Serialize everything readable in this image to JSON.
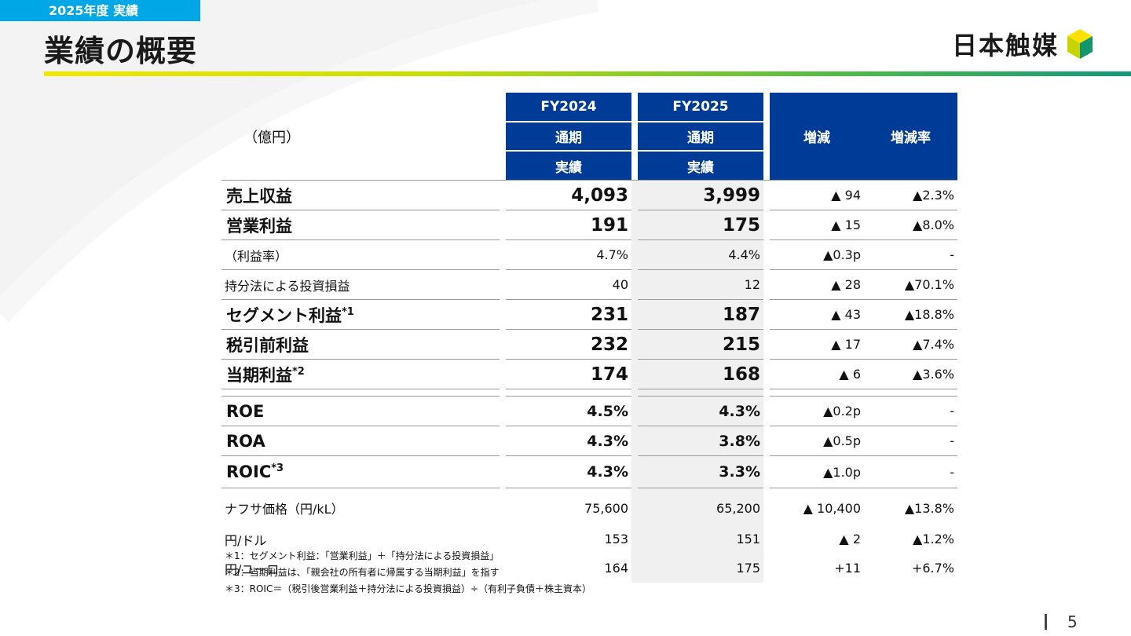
{
  "header": {
    "tag": "2025年度 実績",
    "title": "業績の概要",
    "logo_text": "日本触媒",
    "logo_mark_icon": "catalyst-cube-logo-icon"
  },
  "table": {
    "unit": "（億円）",
    "columns": {
      "fy2024": {
        "year": "FY2024",
        "period": "通期",
        "type": "実績"
      },
      "fy2025": {
        "year": "FY2025",
        "period": "通期",
        "type": "実績"
      },
      "change": "増減",
      "change_rate": "増減率"
    },
    "rows": [
      {
        "label": "売上収益",
        "sup": "",
        "fy2024": "4,093",
        "fy2025": "3,999",
        "change": "▲ 94",
        "rate": "▲2.3%"
      },
      {
        "label": "営業利益",
        "sup": "",
        "fy2024": "191",
        "fy2025": "175",
        "change": "▲ 15",
        "rate": "▲8.0%"
      },
      {
        "label": "（利益率）",
        "sup": "",
        "fy2024": "4.7%",
        "fy2025": "4.4%",
        "change": "▲0.3p",
        "rate": "-"
      },
      {
        "label": "持分法による投資損益",
        "sup": "",
        "fy2024": "40",
        "fy2025": "12",
        "change": "▲ 28",
        "rate": "▲70.1%"
      },
      {
        "label": "セグメント利益",
        "sup": "*1",
        "fy2024": "231",
        "fy2025": "187",
        "change": "▲ 43",
        "rate": "▲18.8%"
      },
      {
        "label": "税引前利益",
        "sup": "",
        "fy2024": "232",
        "fy2025": "215",
        "change": "▲ 17",
        "rate": "▲7.4%"
      },
      {
        "label": "当期利益",
        "sup": "*2",
        "fy2024": "174",
        "fy2025": "168",
        "change": "▲ 6",
        "rate": "▲3.6%"
      },
      {
        "label": "ROE",
        "sup": "",
        "fy2024": "4.5%",
        "fy2025": "4.3%",
        "change": "▲0.2p",
        "rate": "-"
      },
      {
        "label": "ROA",
        "sup": "",
        "fy2024": "4.3%",
        "fy2025": "3.8%",
        "change": "▲0.5p",
        "rate": "-"
      },
      {
        "label": "ROIC",
        "sup": "*3",
        "fy2024": "4.3%",
        "fy2025": "3.3%",
        "change": "▲1.0p",
        "rate": "-"
      },
      {
        "label": "ナフサ価格（円/kL）",
        "sup": "",
        "fy2024": "75,600",
        "fy2025": "65,200",
        "change": "▲ 10,400",
        "rate": "▲13.8%"
      },
      {
        "label": "円/ドル",
        "sup": "",
        "fy2024": "153",
        "fy2025": "151",
        "change": "▲ 2",
        "rate": "▲1.2%"
      },
      {
        "label": "円/ユーロ",
        "sup": "",
        "fy2024": "164",
        "fy2025": "175",
        "change": "+11",
        "rate": "+6.7%"
      }
    ]
  },
  "notes": [
    "＊1：セグメント利益：「営業利益」＋「持分法による投資損益」",
    "＊2：当期利益は、「親会社の所有者に帰属する当期利益」を指す",
    "＊3：ROIC＝（税引後営業利益＋持分法による投資損益）÷（有利子負債＋株主資本）"
  ],
  "page_number": "5",
  "colors": {
    "tag_bg": "#00a7e6",
    "header_bg": "#003c97",
    "shade": "#f0f0f0"
  }
}
